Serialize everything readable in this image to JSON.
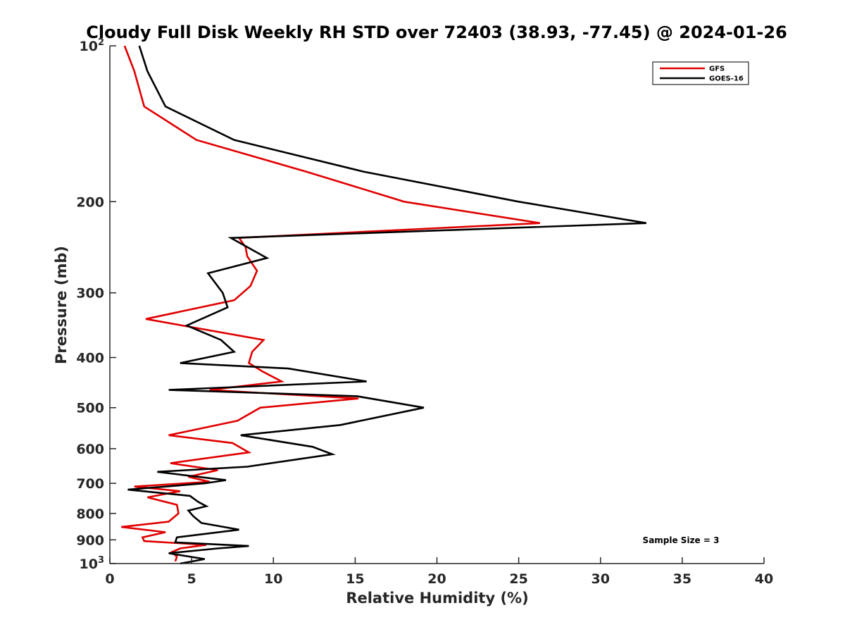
{
  "chart_data": {
    "type": "line",
    "title": "Cloudy Full Disk Weekly RH STD over 72403 (38.93, -77.45) @ 2024-01-26",
    "xlabel": "Relative Humidity (%)",
    "ylabel": "Pressure (mb)",
    "xlim": [
      0,
      40
    ],
    "ylim": [
      100,
      1000
    ],
    "yscale": "log",
    "y_reversed": true,
    "grid": false,
    "legend_position": "top-right",
    "x_ticks": [
      "0",
      "5",
      "10",
      "15",
      "20",
      "25",
      "30",
      "35",
      "40"
    ],
    "x_tick_values": [
      0,
      5,
      10,
      15,
      20,
      25,
      30,
      35,
      40
    ],
    "y_tick_values": [
      100,
      200,
      300,
      400,
      500,
      600,
      700,
      800,
      900,
      1000
    ],
    "y_ticks": [
      {
        "text": "10",
        "sup": "2"
      },
      {
        "text": "200",
        "sup": ""
      },
      {
        "text": "300",
        "sup": ""
      },
      {
        "text": "400",
        "sup": ""
      },
      {
        "text": "500",
        "sup": ""
      },
      {
        "text": "600",
        "sup": ""
      },
      {
        "text": "700",
        "sup": ""
      },
      {
        "text": "800",
        "sup": ""
      },
      {
        "text": "900",
        "sup": ""
      },
      {
        "text": "10",
        "sup": "3"
      }
    ],
    "series": [
      {
        "name": "GFS",
        "color": "#e00000",
        "x": [
          0.9,
          1.5,
          2.1,
          5.3,
          12.0,
          18.0,
          26.3,
          7.9,
          8.3,
          8.4,
          9.0,
          8.6,
          7.6,
          2.2,
          9.4,
          8.7,
          8.5,
          9.3,
          10.5,
          6.1,
          15.2,
          9.2,
          7.8,
          3.6,
          7.5,
          8.5,
          3.7,
          6.6,
          4.8,
          6.1,
          1.5,
          4.3,
          2.3,
          4.1,
          4.2,
          3.6,
          0.7,
          3.4,
          2.0,
          2.1,
          5.9,
          4.3,
          3.8,
          4.1,
          4.0
        ],
        "y": [
          100,
          112,
          131,
          152,
          175,
          200,
          220,
          235,
          245,
          255,
          272,
          291,
          310,
          337,
          370,
          390,
          410,
          425,
          445,
          462,
          480,
          500,
          530,
          565,
          585,
          610,
          640,
          660,
          680,
          695,
          710,
          725,
          745,
          770,
          800,
          830,
          850,
          870,
          890,
          905,
          920,
          935,
          950,
          970,
          990
        ]
      },
      {
        "name": "GOES-16",
        "color": "#000000",
        "x": [
          1.8,
          2.3,
          3.4,
          7.6,
          15.5,
          25.0,
          32.8,
          7.4,
          9.6,
          6.0,
          6.9,
          7.2,
          4.7,
          6.8,
          7.6,
          4.3,
          10.9,
          15.7,
          3.6,
          15.1,
          19.2,
          14.1,
          8.0,
          12.4,
          13.6,
          8.4,
          2.9,
          7.1,
          5.8,
          1.1,
          4.9,
          5.4,
          5.9,
          4.8,
          5.1,
          5.6,
          7.9,
          4.1,
          4.0,
          8.5,
          6.6,
          3.6,
          5.8,
          4.3
        ],
        "y": [
          100,
          112,
          131,
          152,
          175,
          200,
          220,
          235,
          257,
          275,
          300,
          320,
          347,
          370,
          390,
          410,
          420,
          445,
          462,
          475,
          500,
          540,
          565,
          595,
          615,
          650,
          665,
          690,
          700,
          720,
          740,
          760,
          775,
          790,
          810,
          835,
          860,
          890,
          910,
          925,
          935,
          955,
          980,
          1000
        ]
      }
    ],
    "annotations": [
      "Sample Size = 3"
    ]
  }
}
